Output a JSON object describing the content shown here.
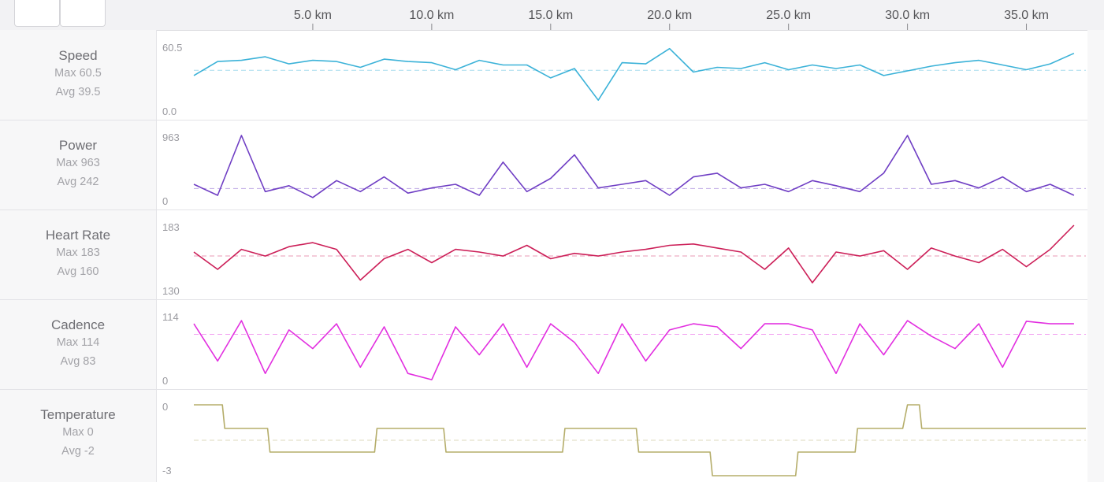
{
  "toolbar": {
    "buttons": [
      "",
      ""
    ]
  },
  "x_axis": {
    "unit": "km",
    "tick_values": [
      5,
      10,
      15,
      20,
      25,
      30,
      35
    ],
    "tick_labels": [
      "5.0 km",
      "10.0 km",
      "15.0 km",
      "20.0 km",
      "25.0 km",
      "30.0 km",
      "35.0 km"
    ],
    "range": [
      0,
      37.5
    ]
  },
  "metrics": [
    {
      "name": "Speed",
      "max_label": "Max 60.5",
      "avg_label": "Avg 39.5",
      "y_top_label": "60.5",
      "y_bottom_label": "0.0",
      "color": "#3bb2d8"
    },
    {
      "name": "Power",
      "max_label": "Max 963",
      "avg_label": "Avg 242",
      "y_top_label": "963",
      "y_bottom_label": "0",
      "color": "#6f3ec4"
    },
    {
      "name": "Heart Rate",
      "max_label": "Max 183",
      "avg_label": "Avg 160",
      "y_top_label": "183",
      "y_bottom_label": "130",
      "color": "#cc1f58"
    },
    {
      "name": "Cadence",
      "max_label": "Max 114",
      "avg_label": "Avg 83",
      "y_top_label": "114",
      "y_bottom_label": "0",
      "color": "#e22fe0"
    },
    {
      "name": "Temperature",
      "max_label": "Max 0",
      "avg_label": "Avg -2",
      "y_top_label": "0",
      "y_bottom_label": "-3",
      "color": "#b5ad6a"
    }
  ],
  "chart_data": [
    {
      "type": "line",
      "title": "Speed",
      "x": [
        0,
        1,
        2,
        3,
        4,
        5,
        6,
        7,
        8,
        9,
        10,
        11,
        12,
        13,
        14,
        15,
        16,
        17,
        18,
        19,
        20,
        21,
        22,
        23,
        24,
        25,
        26,
        27,
        28,
        29,
        30,
        31,
        32,
        33,
        34,
        35,
        36,
        37
      ],
      "values": [
        35,
        47,
        48,
        51,
        45,
        48,
        47,
        42,
        49,
        47,
        46,
        40,
        48,
        44,
        44,
        33,
        41,
        14,
        46,
        45,
        58,
        38,
        42,
        41,
        46,
        40,
        44,
        41,
        44,
        35,
        39,
        43,
        46,
        48,
        44,
        40,
        45,
        54
      ],
      "avg": 39.5,
      "ylim": [
        0,
        60.5
      ]
    },
    {
      "type": "line",
      "title": "Power",
      "x": [
        0,
        1,
        2,
        3,
        4,
        5,
        6,
        7,
        8,
        9,
        10,
        11,
        12,
        13,
        14,
        15,
        16,
        17,
        18,
        19,
        20,
        21,
        22,
        23,
        24,
        25,
        26,
        27,
        28,
        29,
        30,
        31,
        32,
        33,
        34,
        35,
        36,
        37
      ],
      "values": [
        300,
        150,
        963,
        200,
        280,
        120,
        350,
        200,
        400,
        180,
        250,
        300,
        150,
        600,
        200,
        380,
        700,
        250,
        300,
        350,
        150,
        400,
        450,
        250,
        300,
        200,
        350,
        280,
        200,
        450,
        963,
        300,
        350,
        250,
        400,
        200,
        300,
        150
      ],
      "avg": 242,
      "ylim": [
        0,
        963
      ]
    },
    {
      "type": "line",
      "title": "Heart Rate",
      "x": [
        0,
        1,
        2,
        3,
        4,
        5,
        6,
        7,
        8,
        9,
        10,
        11,
        12,
        13,
        14,
        15,
        16,
        17,
        18,
        19,
        20,
        21,
        22,
        23,
        24,
        25,
        26,
        27,
        28,
        29,
        30,
        31,
        32,
        33,
        34,
        35,
        36,
        37
      ],
      "values": [
        163,
        150,
        165,
        160,
        167,
        170,
        165,
        142,
        158,
        165,
        155,
        165,
        163,
        160,
        168,
        158,
        162,
        160,
        163,
        165,
        168,
        169,
        166,
        163,
        150,
        166,
        140,
        163,
        160,
        164,
        150,
        166,
        160,
        155,
        165,
        152,
        165,
        183
      ],
      "avg": 160,
      "ylim": [
        130,
        183
      ]
    },
    {
      "type": "line",
      "title": "Cadence",
      "x": [
        0,
        1,
        2,
        3,
        4,
        5,
        6,
        7,
        8,
        9,
        10,
        11,
        12,
        13,
        14,
        15,
        16,
        17,
        18,
        19,
        20,
        21,
        22,
        23,
        24,
        25,
        26,
        27,
        28,
        29,
        30,
        31,
        32,
        33,
        34,
        35,
        36,
        37
      ],
      "values": [
        100,
        40,
        105,
        20,
        90,
        60,
        100,
        30,
        95,
        20,
        10,
        95,
        50,
        100,
        30,
        100,
        70,
        20,
        100,
        40,
        90,
        100,
        95,
        60,
        100,
        100,
        90,
        20,
        100,
        50,
        105,
        80,
        60,
        100,
        30,
        104,
        100,
        100
      ],
      "avg": 83,
      "ylim": [
        0,
        114
      ]
    },
    {
      "type": "line",
      "title": "Temperature",
      "x": [
        0,
        1.2,
        1.3,
        3.1,
        3.2,
        7.6,
        7.7,
        10.5,
        10.6,
        15.5,
        15.6,
        18.6,
        18.7,
        21.7,
        21.8,
        23.0,
        23.1,
        25.3,
        25.4,
        27.8,
        27.9,
        29.8,
        30.0,
        30.5,
        30.6,
        37.5
      ],
      "values": [
        0,
        0,
        -1,
        -1,
        -2,
        -2,
        -1,
        -1,
        -2,
        -2,
        -1,
        -1,
        -2,
        -2,
        -3,
        -3,
        -3,
        -3,
        -2,
        -2,
        -1,
        -1,
        0,
        0,
        -1,
        -1
      ],
      "avg": -1.5,
      "ylim": [
        -3,
        0
      ]
    }
  ]
}
